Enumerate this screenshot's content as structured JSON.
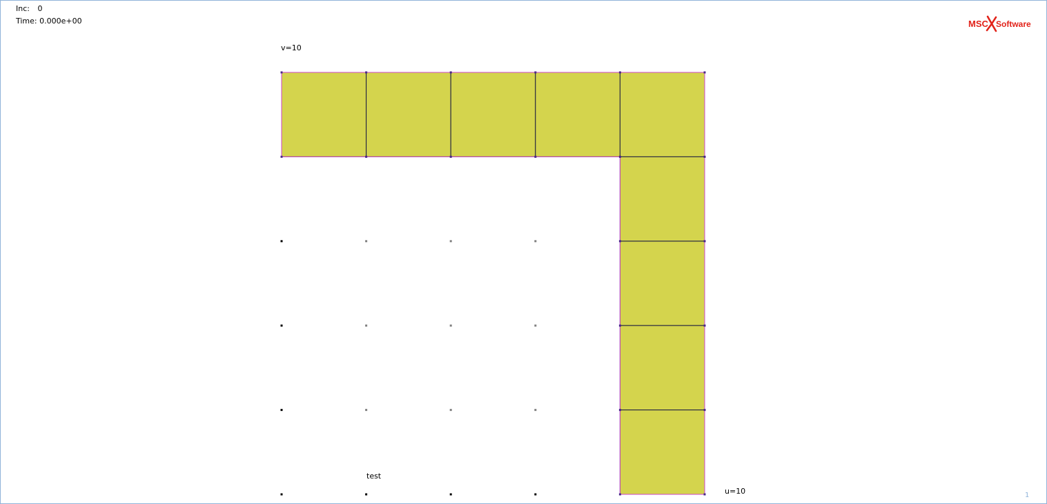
{
  "app": {
    "title": ""
  },
  "info": {
    "inc_label": "Inc:",
    "inc_value": "0",
    "time_label": "Time:",
    "time_value": "0.000e+00"
  },
  "logo": {
    "brand": "MSC",
    "product": "Software",
    "brand_color": "#e2231a"
  },
  "axes": {
    "v_label": "v=10",
    "u_label": "u=10"
  },
  "annotation": {
    "text": "test"
  },
  "page_number": "1",
  "mesh": {
    "element_fill": "#d4d44d",
    "element_edge": "#1a1a40",
    "boundary_color": "#cc44cc",
    "active_node_color": "#4a2a8a",
    "free_node_color_dark": "#000000",
    "free_node_color_gray": "#808080",
    "grid_cols": 5,
    "grid_rows": 5,
    "elements": [
      {
        "col": 0,
        "row": 0
      },
      {
        "col": 1,
        "row": 0
      },
      {
        "col": 2,
        "row": 0
      },
      {
        "col": 3,
        "row": 0
      },
      {
        "col": 4,
        "row": 0
      },
      {
        "col": 4,
        "row": 1
      },
      {
        "col": 4,
        "row": 2
      },
      {
        "col": 4,
        "row": 3
      },
      {
        "col": 4,
        "row": 4
      }
    ]
  }
}
